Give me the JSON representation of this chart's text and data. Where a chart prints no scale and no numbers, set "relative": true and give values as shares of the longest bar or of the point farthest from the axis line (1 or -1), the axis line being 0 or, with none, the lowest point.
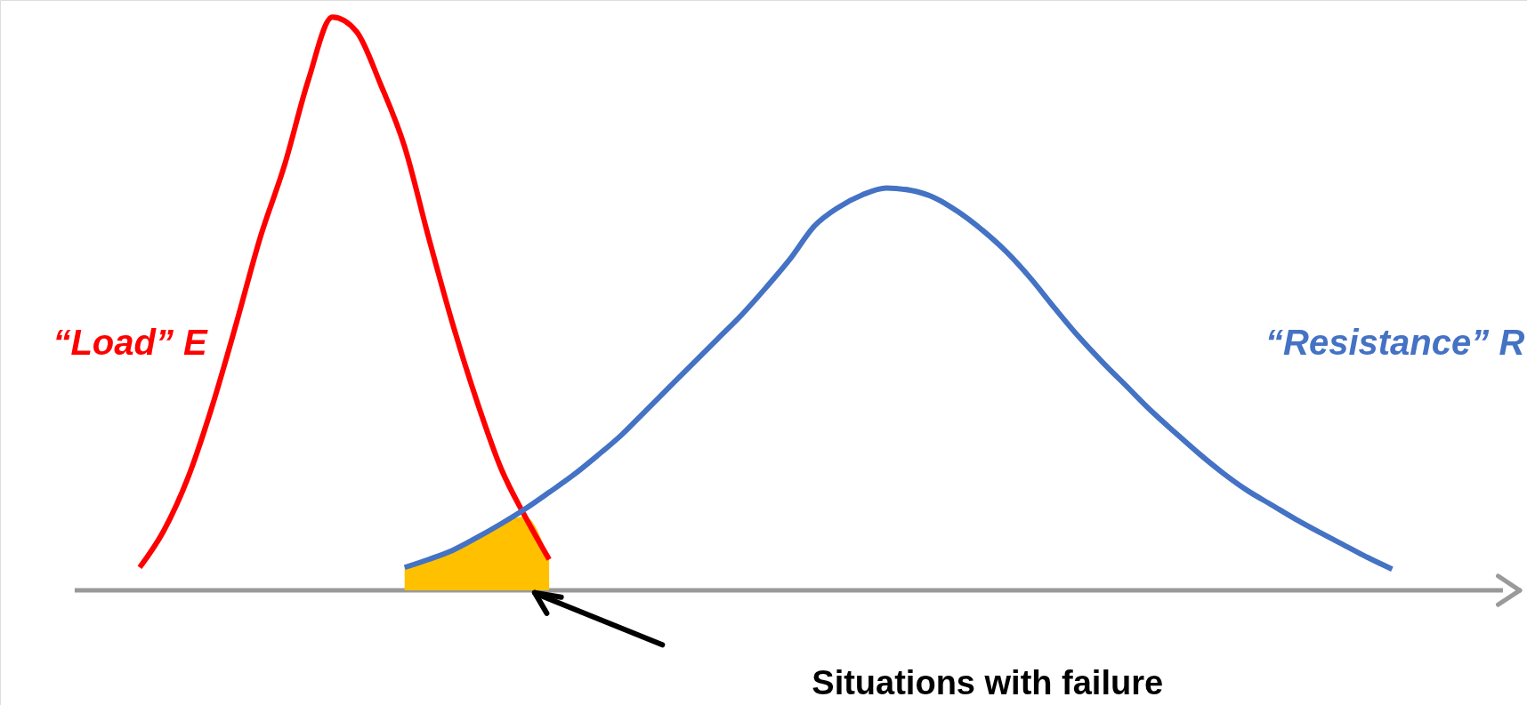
{
  "chart_data": {
    "type": "line",
    "relative": true,
    "categories": [
      null,
      null,
      null,
      null,
      null,
      null,
      null,
      null,
      null,
      null,
      null,
      null,
      null,
      null,
      null,
      null,
      null,
      null,
      null,
      null,
      null,
      null,
      null,
      null,
      null,
      null,
      null,
      null,
      null,
      null,
      null,
      null,
      null,
      null,
      null,
      null,
      null,
      null,
      null,
      null,
      null,
      null,
      null,
      null,
      null,
      null,
      null,
      null,
      null,
      null,
      null,
      null,
      null,
      null,
      null,
      null,
      null,
      null,
      null
    ],
    "series": [
      {
        "type": "area",
        "color": "#ffc000",
        "values": [
          null,
          null,
          null,
          null,
          null,
          null,
          null,
          null,
          null,
          null,
          null,
          null,
          null,
          0.04,
          0.054,
          0.07,
          0.092,
          0.116,
          0.129,
          0.054,
          null,
          null,
          null,
          null,
          null,
          null,
          null,
          null,
          null,
          null,
          null,
          null,
          null,
          null,
          null,
          null,
          null,
          null,
          null,
          null,
          null,
          null,
          null,
          null,
          null,
          null,
          null,
          null,
          null,
          null,
          null,
          null,
          null,
          null,
          null,
          null,
          null,
          null,
          null
        ]
      },
      {
        "name": "“Load” E",
        "color": "#ff0000",
        "values": [
          null,
          null,
          0.04,
          0.104,
          0.196,
          0.32,
          0.464,
          0.615,
          0.74,
          0.89,
          1.0,
          0.975,
          0.883,
          0.774,
          0.615,
          0.464,
          0.33,
          0.213,
          0.129,
          0.054,
          null,
          null,
          null,
          null,
          null,
          null,
          null,
          null,
          null,
          null,
          null,
          null,
          null,
          null,
          null,
          null,
          null,
          null,
          null,
          null,
          null,
          null,
          null,
          null,
          null,
          null,
          null,
          null,
          null,
          null,
          null,
          null,
          null,
          null,
          null,
          null,
          null,
          null,
          null
        ]
      },
      {
        "name": "“Resistance” R",
        "color": "#4472c4",
        "values": [
          null,
          null,
          null,
          null,
          null,
          null,
          null,
          null,
          null,
          null,
          null,
          null,
          null,
          0.04,
          0.054,
          0.07,
          0.092,
          0.116,
          0.142,
          0.171,
          0.201,
          0.235,
          0.271,
          0.313,
          0.355,
          0.397,
          0.439,
          0.481,
          0.528,
          0.578,
          0.635,
          0.668,
          0.69,
          0.702,
          0.698,
          0.685,
          0.66,
          0.628,
          0.59,
          0.544,
          0.492,
          0.442,
          0.397,
          0.355,
          0.313,
          0.275,
          0.238,
          0.204,
          0.174,
          0.149,
          0.124,
          0.101,
          0.079,
          0.057,
          0.037,
          null,
          null,
          null,
          null
        ]
      }
    ],
    "annotations": [
      "Situations with failure"
    ]
  }
}
